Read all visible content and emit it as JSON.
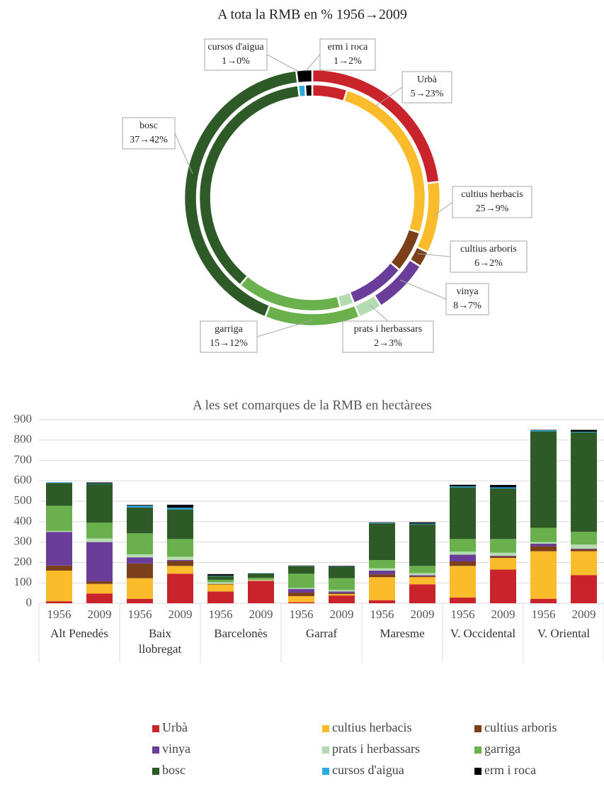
{
  "chart_data": [
    {
      "type": "donut",
      "title": "A tota la RMB en % 1956→2009",
      "categories": [
        "Urbà",
        "cultius herbacis",
        "cultius arboris",
        "vinya",
        "prats i herbassars",
        "garriga",
        "bosc",
        "cursos d'aigua",
        "erm i roca"
      ],
      "colors": [
        "#c9242b",
        "#fbbc2c",
        "#7b3f1a",
        "#6a3d9a",
        "#b5dcb0",
        "#6ab04c",
        "#2d5a27",
        "#29abe2",
        "#000000"
      ],
      "series": [
        {
          "values": [
            5,
            25,
            6,
            8,
            2,
            15,
            37,
            1,
            1
          ]
        },
        {
          "values": [
            23,
            9,
            2,
            7,
            3,
            12,
            42,
            0,
            2
          ]
        }
      ],
      "value_labels": [
        "5→23%",
        "25→9%",
        "6→2%",
        "8→7%",
        "2→3%",
        "15→12%",
        "37→42%",
        "1→0%",
        "1→2%"
      ]
    },
    {
      "type": "stacked_bar",
      "title": "A les set comarques de la RMB en hectàrees",
      "categories": [
        "1956",
        "2009",
        "1956",
        "2009",
        "1956",
        "2009",
        "1956",
        "2009",
        "1956",
        "2009",
        "1956",
        "2009",
        "1956",
        "2009"
      ],
      "groups": [
        "Alt Penedés",
        "Baix llobregat",
        "Barcelonès",
        "Garraf",
        "Maresme",
        "V. Occidental",
        "V. Oriental"
      ],
      "ylim": [
        0,
        900
      ],
      "yticks": [
        0,
        100,
        200,
        300,
        400,
        500,
        600,
        700,
        800,
        900
      ],
      "grid": true,
      "series": [
        {
          "name": "Urbà",
          "color": "#c9242b",
          "values": [
            10,
            48,
            22,
            145,
            58,
            110,
            5,
            38,
            15,
            93,
            28,
            165,
            22,
            138
          ]
        },
        {
          "name": "cultius herbacis",
          "color": "#fbbc2c",
          "values": [
            150,
            47,
            101,
            38,
            34,
            2,
            30,
            7,
            113,
            35,
            155,
            57,
            233,
            117
          ]
        },
        {
          "name": "cultius arboris",
          "color": "#7b3f1a",
          "values": [
            25,
            13,
            72,
            24,
            3,
            0,
            17,
            5,
            14,
            5,
            22,
            8,
            25,
            10
          ]
        },
        {
          "name": "vinya",
          "color": "#6a3d9a",
          "values": [
            165,
            192,
            30,
            5,
            0,
            0,
            18,
            8,
            18,
            5,
            33,
            3,
            12,
            3
          ]
        },
        {
          "name": "prats i herbassars",
          "color": "#b5dcb0",
          "values": [
            5,
            18,
            15,
            16,
            8,
            3,
            5,
            7,
            12,
            10,
            15,
            15,
            8,
            20
          ]
        },
        {
          "name": "garriga",
          "color": "#6ab04c",
          "values": [
            123,
            77,
            103,
            87,
            12,
            10,
            70,
            58,
            40,
            35,
            62,
            67,
            70,
            62
          ]
        },
        {
          "name": "bosc",
          "color": "#2d5a27",
          "values": [
            112,
            190,
            127,
            145,
            18,
            22,
            38,
            55,
            180,
            205,
            253,
            248,
            473,
            488
          ]
        },
        {
          "name": "cursos d'aigua",
          "color": "#29abe2",
          "values": [
            3,
            2,
            8,
            8,
            2,
            1,
            1,
            1,
            3,
            3,
            5,
            5,
            5,
            3
          ]
        },
        {
          "name": "erm i roca",
          "color": "#000000",
          "values": [
            0,
            5,
            4,
            15,
            8,
            0,
            1,
            4,
            2,
            6,
            8,
            12,
            2,
            9
          ]
        }
      ]
    }
  ]
}
